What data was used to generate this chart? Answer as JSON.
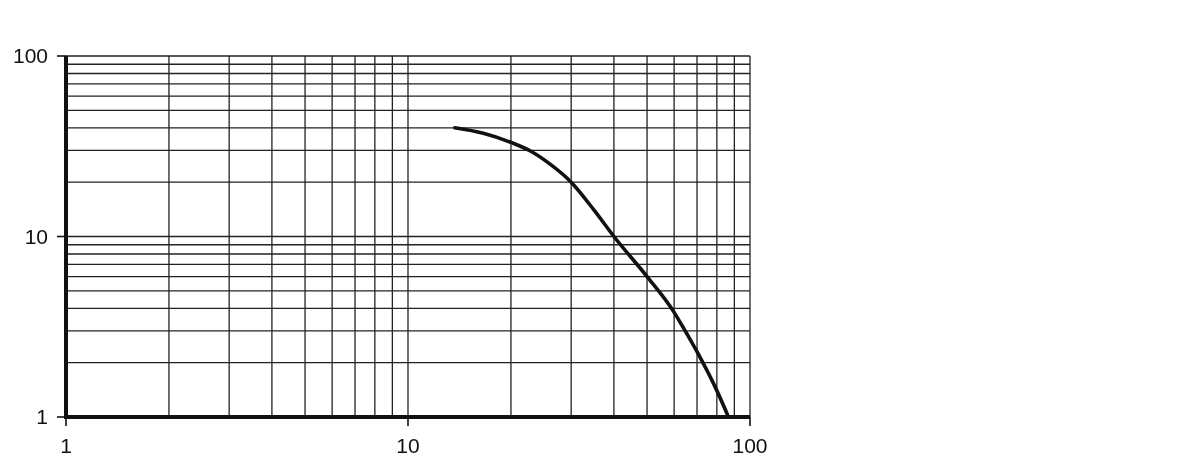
{
  "chart_data": {
    "type": "line",
    "log": "xy",
    "grid": true,
    "line_style": "solid",
    "xlim": [
      1,
      100
    ],
    "ylim": [
      1,
      100
    ],
    "xticks": [
      1,
      {
        "value": 2,
        "label": null
      },
      {
        "value": 3,
        "label": null
      },
      {
        "value": 4,
        "label": null
      },
      {
        "value": 5,
        "label": null
      },
      {
        "value": 6,
        "label": null
      },
      {
        "value": 7,
        "label": null
      },
      {
        "value": 8,
        "label": null
      },
      {
        "value": 9,
        "label": null
      },
      10,
      {
        "value": 20,
        "label": null
      },
      {
        "value": 30,
        "label": null
      },
      {
        "value": 40,
        "label": null
      },
      {
        "value": 50,
        "label": null
      },
      {
        "value": 60,
        "label": null
      },
      {
        "value": 70,
        "label": null
      },
      {
        "value": 80,
        "label": null
      },
      {
        "value": 90,
        "label": null
      },
      100
    ],
    "yticks": [
      1,
      {
        "value": 2,
        "label": null
      },
      {
        "value": 3,
        "label": null
      },
      {
        "value": 4,
        "label": null
      },
      {
        "value": 5,
        "label": null
      },
      {
        "value": 6,
        "label": null
      },
      {
        "value": 7,
        "label": null
      },
      {
        "value": 8,
        "label": null
      },
      {
        "value": 9,
        "label": null
      },
      10,
      {
        "value": 20,
        "label": null
      },
      {
        "value": 30,
        "label": null
      },
      {
        "value": 40,
        "label": null
      },
      {
        "value": 50,
        "label": null
      },
      {
        "value": 60,
        "label": null
      },
      {
        "value": 70,
        "label": null
      },
      {
        "value": 80,
        "label": null
      },
      {
        "value": 90,
        "label": null
      },
      100
    ],
    "series": [
      {
        "color": "#111111",
        "x": [
          13.7,
          16.6,
          20,
          23,
          25.8,
          30,
          35,
          40,
          50,
          60,
          64,
          70,
          80,
          86.5
        ],
        "values": [
          40,
          37.3,
          33.2,
          29.5,
          25.5,
          20,
          14,
          10,
          6,
          3.8,
          3.1,
          2.3,
          1.4,
          1
        ]
      }
    ]
  }
}
